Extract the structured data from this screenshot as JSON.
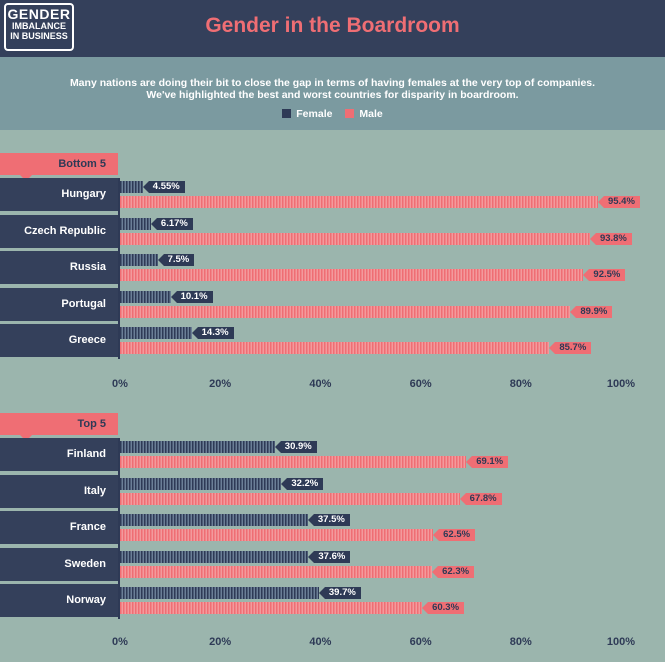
{
  "header": {
    "logo_line1": "GENDER",
    "logo_line2": "IMBALANCE",
    "logo_line3": "IN BUSINESS",
    "title": "Gender in the Boardroom"
  },
  "intro": {
    "line1": "Many nations are doing their bit to close the gap in terms of having females at the very top of companies.",
    "line2": "We've highlighted the best and worst countries for disparity in boardroom."
  },
  "legend": {
    "female": "Female",
    "male": "Male"
  },
  "colors": {
    "female": "#2e3a56",
    "male": "#ef6e74",
    "background": "#9bb5ad",
    "header": "#34405b"
  },
  "chart_data": [
    {
      "type": "bar",
      "title": "Bottom 5",
      "categories": [
        "Hungary",
        "Czech Republic",
        "Russia",
        "Portugal",
        "Greece"
      ],
      "series": [
        {
          "name": "Female",
          "values": [
            4.55,
            6.17,
            7.5,
            10.1,
            14.3
          ],
          "labels": [
            "4.55%",
            "6.17%",
            "7.5%",
            "10.1%",
            "14.3%"
          ]
        },
        {
          "name": "Male",
          "values": [
            95.4,
            93.8,
            92.5,
            89.9,
            85.7
          ],
          "labels": [
            "95.4%",
            "93.8%",
            "92.5%",
            "89.9%",
            "85.7%"
          ]
        }
      ],
      "xlim": [
        0,
        100
      ],
      "ticks": [
        "0%",
        "20%",
        "40%",
        "60%",
        "80%",
        "100%"
      ],
      "grid": false
    },
    {
      "type": "bar",
      "title": "Top 5",
      "categories": [
        "Finland",
        "Italy",
        "France",
        "Sweden",
        "Norway"
      ],
      "series": [
        {
          "name": "Female",
          "values": [
            30.9,
            32.2,
            37.5,
            37.6,
            39.7
          ],
          "labels": [
            "30.9%",
            "32.2%",
            "37.5%",
            "37.6%",
            "39.7%"
          ]
        },
        {
          "name": "Male",
          "values": [
            69.1,
            67.8,
            62.5,
            62.3,
            60.3
          ],
          "labels": [
            "69.1%",
            "67.8%",
            "62.5%",
            "62.3%",
            "60.3%"
          ]
        }
      ],
      "xlim": [
        0,
        100
      ],
      "ticks": [
        "0%",
        "20%",
        "40%",
        "60%",
        "80%",
        "100%"
      ],
      "grid": false
    }
  ]
}
